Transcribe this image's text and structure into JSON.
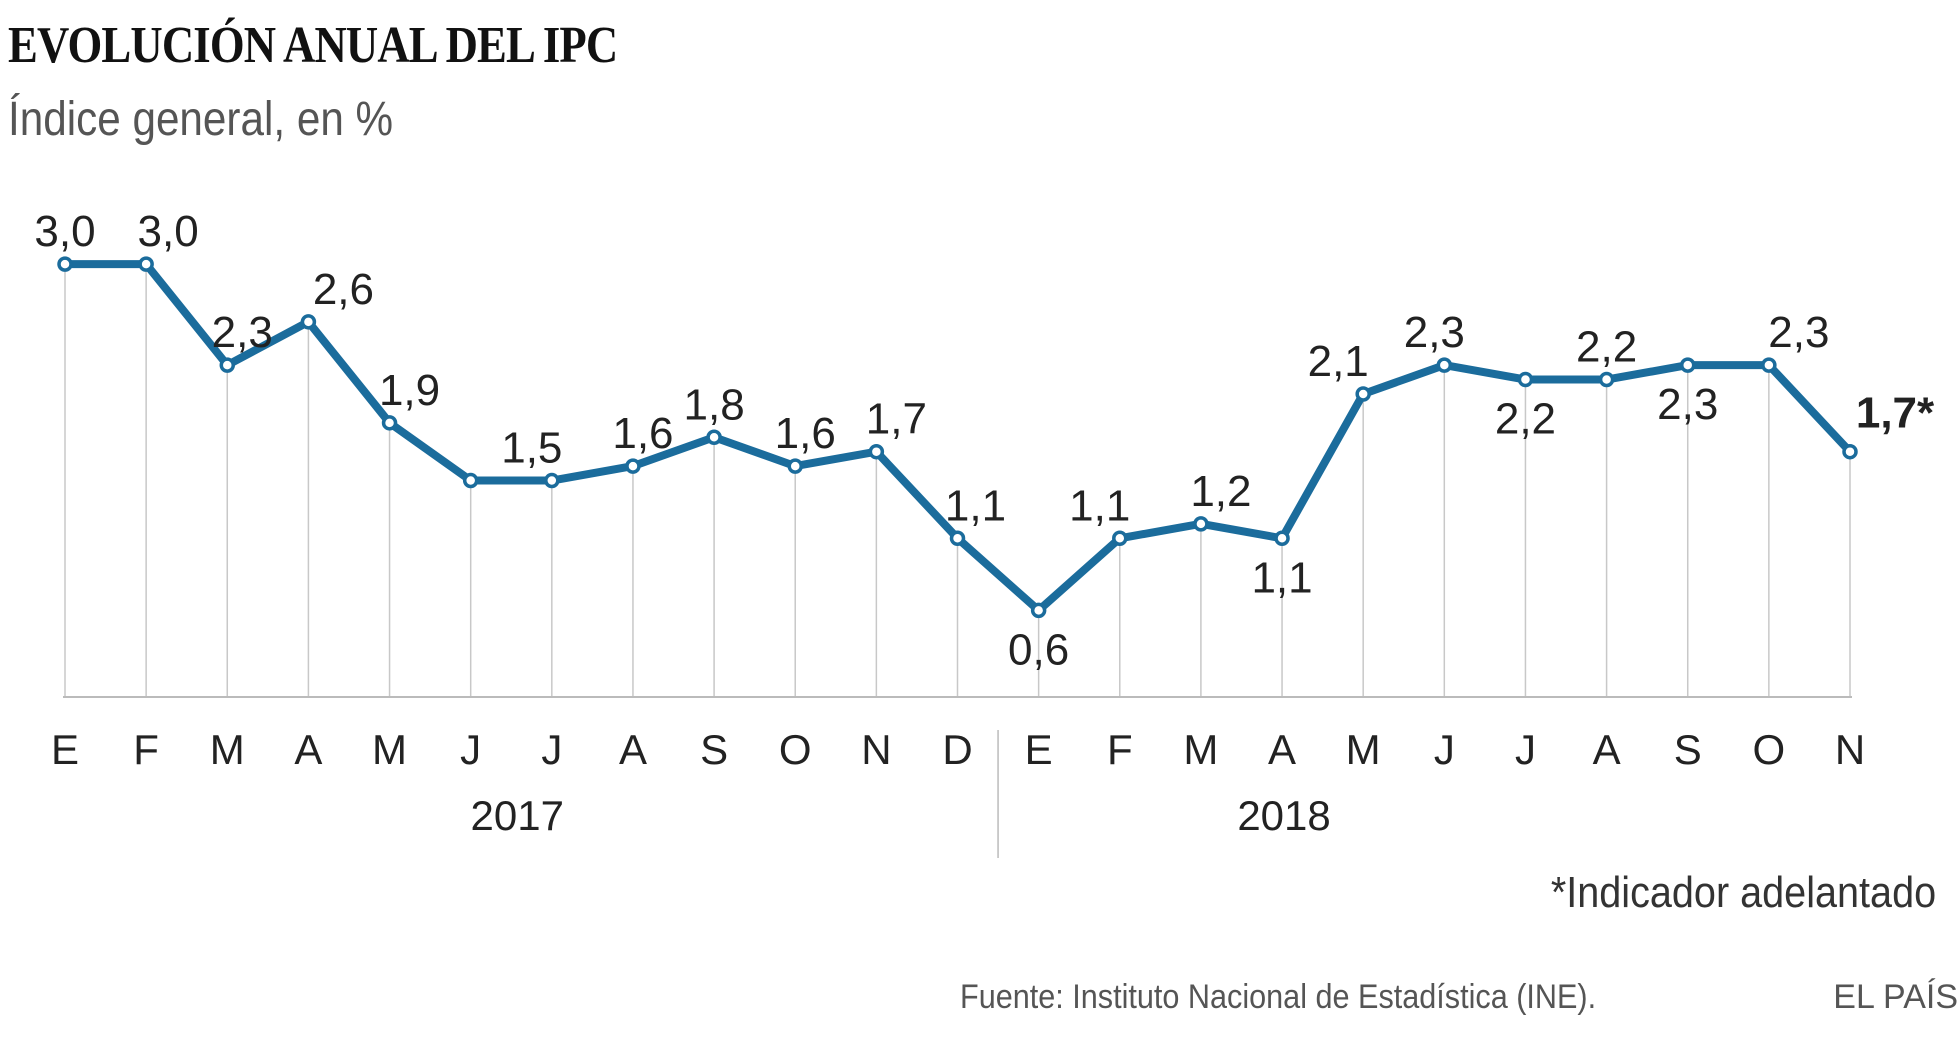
{
  "header": {
    "title": "EVOLUCIÓN ANUAL DEL IPC",
    "subtitle": "Índice general, en %"
  },
  "chart_data": {
    "type": "line",
    "title": "EVOLUCIÓN ANUAL DEL IPC",
    "subtitle": "Índice general, en %",
    "categories": [
      "E",
      "F",
      "M",
      "A",
      "M",
      "J",
      "J",
      "A",
      "S",
      "O",
      "N",
      "D",
      "E",
      "F",
      "M",
      "A",
      "M",
      "J",
      "J",
      "A",
      "S",
      "O",
      "N"
    ],
    "years": [
      {
        "label": "2017",
        "months": 12
      },
      {
        "label": "2018",
        "months": 11
      }
    ],
    "values": [
      3.0,
      3.0,
      2.3,
      2.6,
      1.9,
      1.5,
      1.5,
      1.6,
      1.8,
      1.6,
      1.7,
      1.1,
      0.6,
      1.1,
      1.2,
      1.1,
      2.1,
      2.3,
      2.2,
      2.2,
      2.3,
      2.3,
      1.7
    ],
    "labels": [
      "3,0",
      "3,0",
      "2,3",
      "2,6",
      "1,9",
      "",
      "1,5",
      "1,6",
      "1,8",
      "1,6",
      "1,7",
      "1,1",
      "0,6",
      "1,1",
      "1,2",
      "1,1",
      "2,1",
      "2,3",
      "2,2",
      "2,2",
      "2,3",
      "2,3",
      "1,7*"
    ],
    "label_below": [
      false,
      false,
      false,
      false,
      false,
      false,
      false,
      false,
      false,
      false,
      false,
      false,
      true,
      false,
      false,
      true,
      false,
      false,
      true,
      false,
      true,
      false,
      false
    ],
    "ylim": [
      0,
      3.0
    ],
    "grid": "vertical drop lines",
    "legend": "none",
    "line_color": "#1b6c9c",
    "note": "*Indicador adelantado"
  },
  "footer": {
    "source": "Fuente: Instituto Nacional de Estadística (INE).",
    "brand": "EL PAÍS"
  }
}
